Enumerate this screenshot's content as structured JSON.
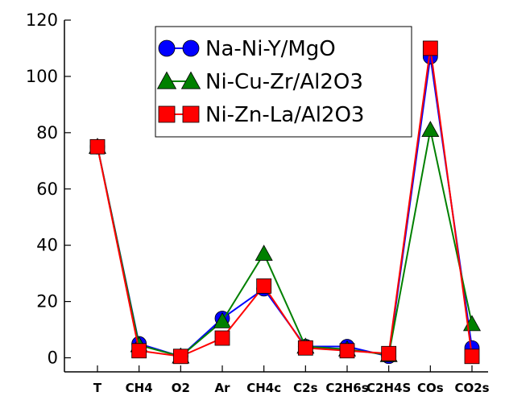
{
  "chart_data": {
    "type": "line",
    "categories": [
      "T",
      "CH4",
      "O2",
      "Ar",
      "CH4c",
      "C2s",
      "C2H6s",
      "C2H4S",
      "COs",
      "CO2s"
    ],
    "ylim": [
      -5,
      120
    ],
    "yticks": [
      0,
      20,
      40,
      60,
      80,
      100,
      120
    ],
    "grid": false,
    "legend_position": "top-center",
    "series": [
      {
        "name": "Na-Ni-Y/MgO",
        "color": "#0000ff",
        "marker": "circle",
        "values": [
          75,
          5,
          0.5,
          14,
          24.5,
          4,
          4,
          0.5,
          107,
          3.5
        ]
      },
      {
        "name": "Ni-Cu-Zr/Al2O3",
        "color": "#008000",
        "marker": "triangle",
        "values": [
          75,
          4.5,
          0.5,
          13,
          37,
          4,
          3,
          1,
          81,
          12
        ]
      },
      {
        "name": "Ni-Zn-La/Al2O3",
        "color": "#ff0000",
        "marker": "square",
        "values": [
          75,
          2.5,
          0.5,
          7,
          25.5,
          3.5,
          2.5,
          1.5,
          110,
          0.5
        ]
      }
    ]
  }
}
